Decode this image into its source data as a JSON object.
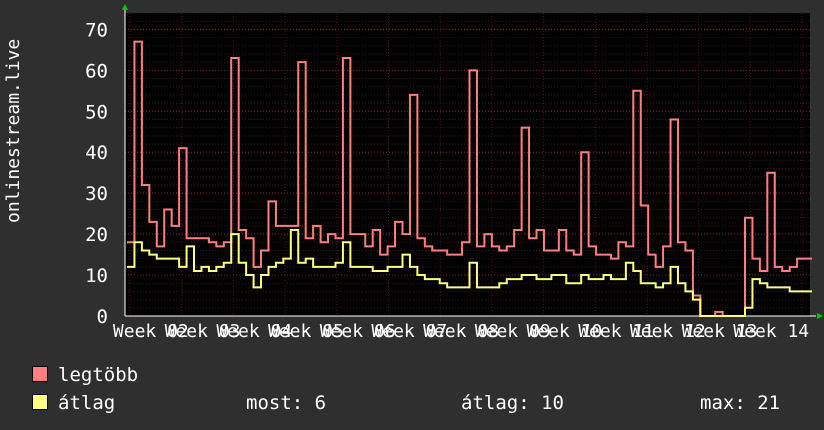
{
  "chart_data": {
    "type": "line",
    "ylabel": "onlinestream.live",
    "ylim": [
      0,
      74
    ],
    "yticks": [
      "0",
      "10",
      "20",
      "30",
      "40",
      "50",
      "60",
      "70"
    ],
    "xticks": [
      "Week 02",
      "Week 03",
      "Week 04",
      "Week 05",
      "Week 06",
      "Week 07",
      "Week 08",
      "Week 09",
      "Week 10",
      "Week 11",
      "Week 12",
      "Week 13",
      "Week 14"
    ],
    "colors": {
      "legtobb": "#ff7f7f",
      "atlag": "#ffff7f",
      "background": "#000000",
      "grid": "#8a2020"
    },
    "series": [
      {
        "name": "legtöbb",
        "values": [
          18,
          67,
          32,
          23,
          17,
          26,
          22,
          41,
          19,
          19,
          19,
          18,
          17,
          18,
          63,
          21,
          19,
          12,
          16,
          28,
          22,
          22,
          22,
          62,
          19,
          22,
          18,
          20,
          19,
          63,
          20,
          20,
          17,
          21,
          15,
          17,
          23,
          20,
          54,
          19,
          17,
          16,
          16,
          15,
          15,
          18,
          60,
          17,
          20,
          17,
          16,
          17,
          21,
          46,
          19,
          21,
          16,
          16,
          21,
          16,
          15,
          40,
          17,
          15,
          15,
          14,
          18,
          17,
          55,
          27,
          15,
          12,
          17,
          48,
          18,
          16,
          5,
          0,
          0,
          1,
          0,
          0,
          0,
          24,
          14,
          11,
          35,
          12,
          11,
          12,
          14,
          14
        ]
      },
      {
        "name": "átlag",
        "values": [
          12,
          18,
          16,
          15,
          14,
          14,
          14,
          12,
          17,
          11,
          12,
          11,
          12,
          13,
          20,
          13,
          10,
          7,
          10,
          12,
          13,
          14,
          21,
          13,
          14,
          12,
          12,
          12,
          13,
          18,
          12,
          12,
          12,
          11,
          11,
          12,
          12,
          15,
          12,
          10,
          9,
          9,
          8,
          7,
          7,
          7,
          13,
          7,
          7,
          7,
          8,
          9,
          9,
          10,
          10,
          9,
          9,
          10,
          10,
          8,
          8,
          10,
          9,
          9,
          10,
          9,
          9,
          13,
          11,
          8,
          8,
          7,
          8,
          12,
          8,
          6,
          4,
          0,
          0,
          0,
          0,
          0,
          0,
          2,
          9,
          8,
          7,
          7,
          7,
          6,
          6,
          6
        ]
      }
    ]
  },
  "legend": {
    "max_label": "legtöbb",
    "avg_label": "átlag",
    "now_text": "most: 6",
    "avg_text": "átlag: 10",
    "max_text": "max: 21"
  }
}
